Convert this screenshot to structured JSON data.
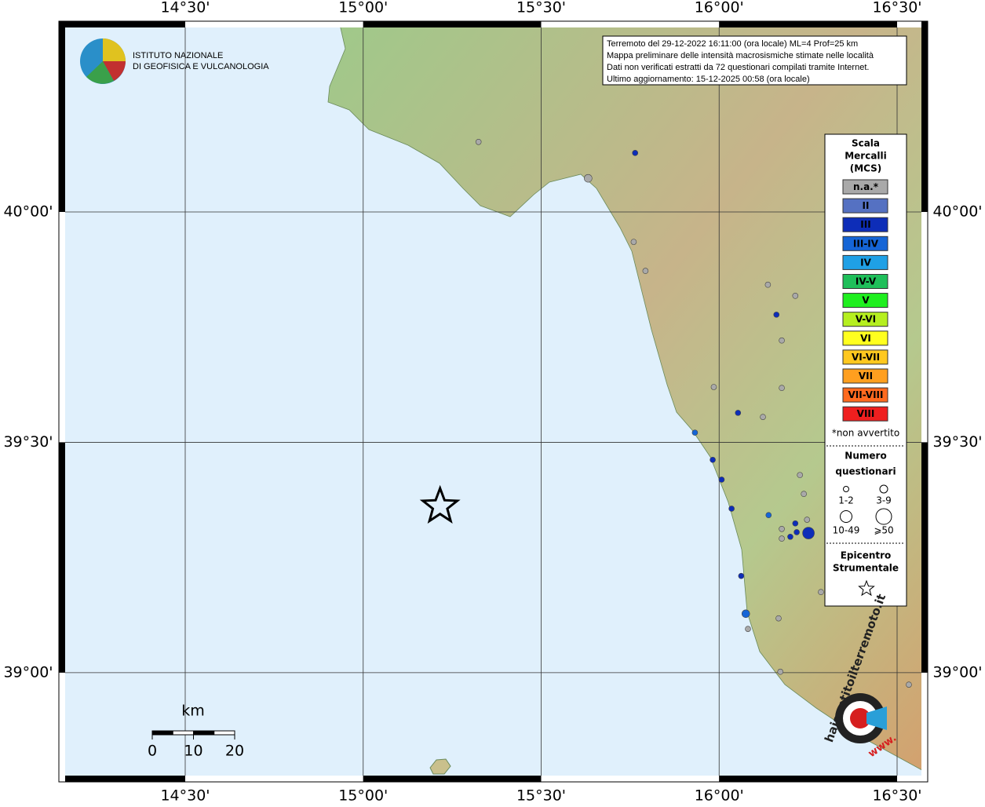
{
  "map": {
    "title_lines": [
      "Terremoto del 29-12-2022 16:11:00 (ora locale) ML=4 Prof=25 km",
      "Mappa preliminare delle intensità macrosismiche stimate nelle località",
      "Dati non verificati estratti da 72 questionari compilati tramite Internet.",
      "Ultimo aggiornamento: 15-12-2025 00:58 (ora locale)"
    ],
    "institute_lines": [
      "ISTITUTO NAZIONALE",
      "DI GEOFISICA E VULCANOLOGIA"
    ],
    "xlim": [
      14.145,
      16.586
    ],
    "ylim": [
      38.763,
      40.414
    ],
    "xticks": [
      {
        "value": 14.5,
        "label": "14°30'"
      },
      {
        "value": 15,
        "label": "15°00'"
      },
      {
        "value": 15.5,
        "label": "15°30'"
      },
      {
        "value": 16,
        "label": "16°00'"
      },
      {
        "value": 16.5,
        "label": "16°30'"
      }
    ],
    "yticks": [
      {
        "value": 40,
        "label": "40°00'"
      },
      {
        "value": 39.5,
        "label": "39°30'"
      },
      {
        "value": 39,
        "label": "39°00'"
      }
    ],
    "legend": {
      "scale_title": [
        "Scala",
        "Mercalli",
        "(MCS)"
      ],
      "scale": [
        {
          "label": "n.a.*",
          "color": "#a9a9a9"
        },
        {
          "label": "II",
          "color": "#5571c2"
        },
        {
          "label": "III",
          "color": "#0d2db8"
        },
        {
          "label": "III-IV",
          "color": "#1565d6"
        },
        {
          "label": "IV",
          "color": "#1fa0e6"
        },
        {
          "label": "IV-V",
          "color": "#1fbf5a"
        },
        {
          "label": "V",
          "color": "#1fef1f"
        },
        {
          "label": "V-VI",
          "color": "#b5ef1f"
        },
        {
          "label": "VI",
          "color": "#ffff1f"
        },
        {
          "label": "VI-VII",
          "color": "#ffc81f"
        },
        {
          "label": "VII",
          "color": "#ff9f1f"
        },
        {
          "label": "VII-VIII",
          "color": "#ff6a1f"
        },
        {
          "label": "VIII",
          "color": "#ef1f1f"
        }
      ],
      "note": "*non avvertito",
      "count_title": [
        "Numero",
        "questionari"
      ],
      "counts": [
        "1-2",
        "3-9",
        "10-49",
        "⩾50"
      ],
      "epicenter_title": [
        "Epicentro",
        "Strumentale"
      ]
    },
    "epicenter": {
      "lon": 15.216,
      "lat": 39.361
    },
    "points": [
      {
        "lon": 15.324,
        "lat": 40.152,
        "intensity": "n.a.*",
        "count": "1-2"
      },
      {
        "lon": 15.632,
        "lat": 40.073,
        "intensity": "n.a.*",
        "count": "3-9"
      },
      {
        "lon": 15.764,
        "lat": 40.128,
        "intensity": "III",
        "count": "1-2"
      },
      {
        "lon": 15.76,
        "lat": 39.935,
        "intensity": "n.a.*",
        "count": "1-2"
      },
      {
        "lon": 15.793,
        "lat": 39.872,
        "intensity": "n.a.*",
        "count": "1-2"
      },
      {
        "lon": 16.137,
        "lat": 39.842,
        "intensity": "n.a.*",
        "count": "1-2"
      },
      {
        "lon": 16.214,
        "lat": 39.818,
        "intensity": "n.a.*",
        "count": "1-2"
      },
      {
        "lon": 16.161,
        "lat": 39.777,
        "intensity": "III",
        "count": "1-2"
      },
      {
        "lon": 16.176,
        "lat": 39.721,
        "intensity": "n.a.*",
        "count": "1-2"
      },
      {
        "lon": 15.985,
        "lat": 39.62,
        "intensity": "n.a.*",
        "count": "1-2"
      },
      {
        "lon": 16.176,
        "lat": 39.618,
        "intensity": "n.a.*",
        "count": "1-2"
      },
      {
        "lon": 16.053,
        "lat": 39.564,
        "intensity": "III",
        "count": "1-2"
      },
      {
        "lon": 16.123,
        "lat": 39.555,
        "intensity": "n.a.*",
        "count": "1-2"
      },
      {
        "lon": 15.932,
        "lat": 39.521,
        "intensity": "III-IV",
        "count": "1-2"
      },
      {
        "lon": 15.982,
        "lat": 39.462,
        "intensity": "III",
        "count": "1-2"
      },
      {
        "lon": 16.007,
        "lat": 39.419,
        "intensity": "III",
        "count": "1-2"
      },
      {
        "lon": 16.227,
        "lat": 39.429,
        "intensity": "n.a.*",
        "count": "1-2"
      },
      {
        "lon": 16.238,
        "lat": 39.388,
        "intensity": "n.a.*",
        "count": "1-2"
      },
      {
        "lon": 16.035,
        "lat": 39.356,
        "intensity": "III",
        "count": "1-2"
      },
      {
        "lon": 16.139,
        "lat": 39.342,
        "intensity": "III-IV",
        "count": "1-2"
      },
      {
        "lon": 16.214,
        "lat": 39.324,
        "intensity": "III",
        "count": "1-2"
      },
      {
        "lon": 16.176,
        "lat": 39.312,
        "intensity": "n.a.*",
        "count": "1-2"
      },
      {
        "lon": 16.247,
        "lat": 39.332,
        "intensity": "n.a.*",
        "count": "1-2"
      },
      {
        "lon": 16.176,
        "lat": 39.291,
        "intensity": "n.a.*",
        "count": "1-2"
      },
      {
        "lon": 16.2,
        "lat": 39.295,
        "intensity": "III",
        "count": "1-2"
      },
      {
        "lon": 16.218,
        "lat": 39.305,
        "intensity": "III",
        "count": "1-2"
      },
      {
        "lon": 16.251,
        "lat": 39.303,
        "intensity": "III",
        "count": "10-49"
      },
      {
        "lon": 16.062,
        "lat": 39.21,
        "intensity": "III",
        "count": "1-2"
      },
      {
        "lon": 16.286,
        "lat": 39.175,
        "intensity": "n.a.*",
        "count": "1-2"
      },
      {
        "lon": 16.075,
        "lat": 39.128,
        "intensity": "III-IV",
        "count": "3-9"
      },
      {
        "lon": 16.167,
        "lat": 39.118,
        "intensity": "n.a.*",
        "count": "1-2"
      },
      {
        "lon": 16.081,
        "lat": 39.095,
        "intensity": "n.a.*",
        "count": "1-2"
      },
      {
        "lon": 16.172,
        "lat": 39.002,
        "intensity": "n.a.*",
        "count": "1-2"
      },
      {
        "lon": 16.533,
        "lat": 38.974,
        "intensity": "n.a.*",
        "count": "1-2"
      }
    ],
    "scale_bar": {
      "unit": "km",
      "ticks": [
        0,
        10,
        20
      ]
    },
    "badge": {
      "text": "haisentitoilterremoto.it",
      "prefix": "www."
    }
  }
}
